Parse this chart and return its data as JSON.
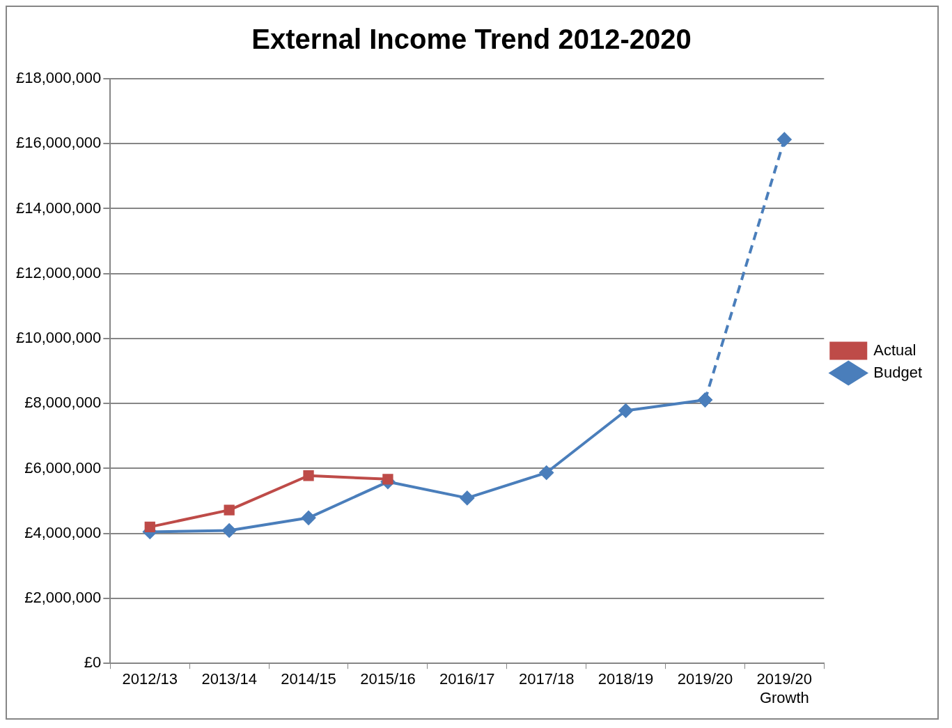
{
  "chart_data": {
    "type": "line",
    "title": "External Income Trend 2012-2020",
    "categories": [
      "2012/13",
      "2013/14",
      "2014/15",
      "2015/16",
      "2016/17",
      "2017/18",
      "2018/19",
      "2019/20",
      "2019/20 Growth"
    ],
    "series": [
      {
        "name": "Budget",
        "color": "#4a7ebb",
        "marker": "diamond",
        "values": [
          4050000,
          4090000,
          4480000,
          5590000,
          5090000,
          5870000,
          7780000,
          8110000,
          null
        ]
      },
      {
        "color": "#4a7ebb",
        "marker": "diamond",
        "line_style": "dashed",
        "values": [
          null,
          null,
          null,
          null,
          null,
          null,
          null,
          8110000,
          16130000
        ]
      },
      {
        "name": "Actual",
        "color": "#be4b48",
        "marker": "square",
        "values": [
          4200000,
          4720000,
          5780000,
          5670000,
          null,
          null,
          null,
          null,
          null
        ]
      }
    ],
    "ylim": [
      0,
      18000000
    ],
    "yticks": [
      {
        "value": 0,
        "label": "£0"
      },
      {
        "value": 2000000,
        "label": "£2,000,000"
      },
      {
        "value": 4000000,
        "label": "£4,000,000"
      },
      {
        "value": 6000000,
        "label": "£6,000,000"
      },
      {
        "value": 8000000,
        "label": "£8,000,000"
      },
      {
        "value": 10000000,
        "label": "£10,000,000"
      },
      {
        "value": 12000000,
        "label": "£12,000,000"
      },
      {
        "value": 14000000,
        "label": "£14,000,000"
      },
      {
        "value": 16000000,
        "label": "£16,000,000"
      },
      {
        "value": 18000000,
        "label": "£18,000,000"
      }
    ],
    "grid": "y",
    "legend": "right",
    "line_style": "solid"
  }
}
